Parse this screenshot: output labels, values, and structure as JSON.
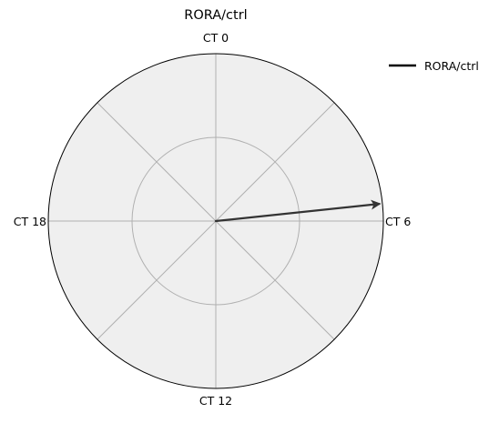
{
  "chart_data": {
    "type": "polar-arrow",
    "title": "RORA/ctrl",
    "angle_unit": "CT hours",
    "period_hours": 24,
    "direction": "clockwise",
    "zero_location": "top",
    "angular_ticks": [
      {
        "hour": 0,
        "label": "CT 0"
      },
      {
        "hour": 6,
        "label": "CT 6"
      },
      {
        "hour": 12,
        "label": "CT 12"
      },
      {
        "hour": 18,
        "label": "CT 18"
      }
    ],
    "radial_max": 1.0,
    "radial_gridlines": [
      0.5
    ],
    "angular_gridline_step_hours": 3,
    "grid": true,
    "background_color": "#efefef",
    "series": [
      {
        "name": "RORA/ctrl",
        "phase_hours": 5.6,
        "amplitude": 0.98,
        "color": "#333333"
      }
    ],
    "legend": {
      "placement": "top-right",
      "entries": [
        "RORA/ctrl"
      ]
    }
  }
}
